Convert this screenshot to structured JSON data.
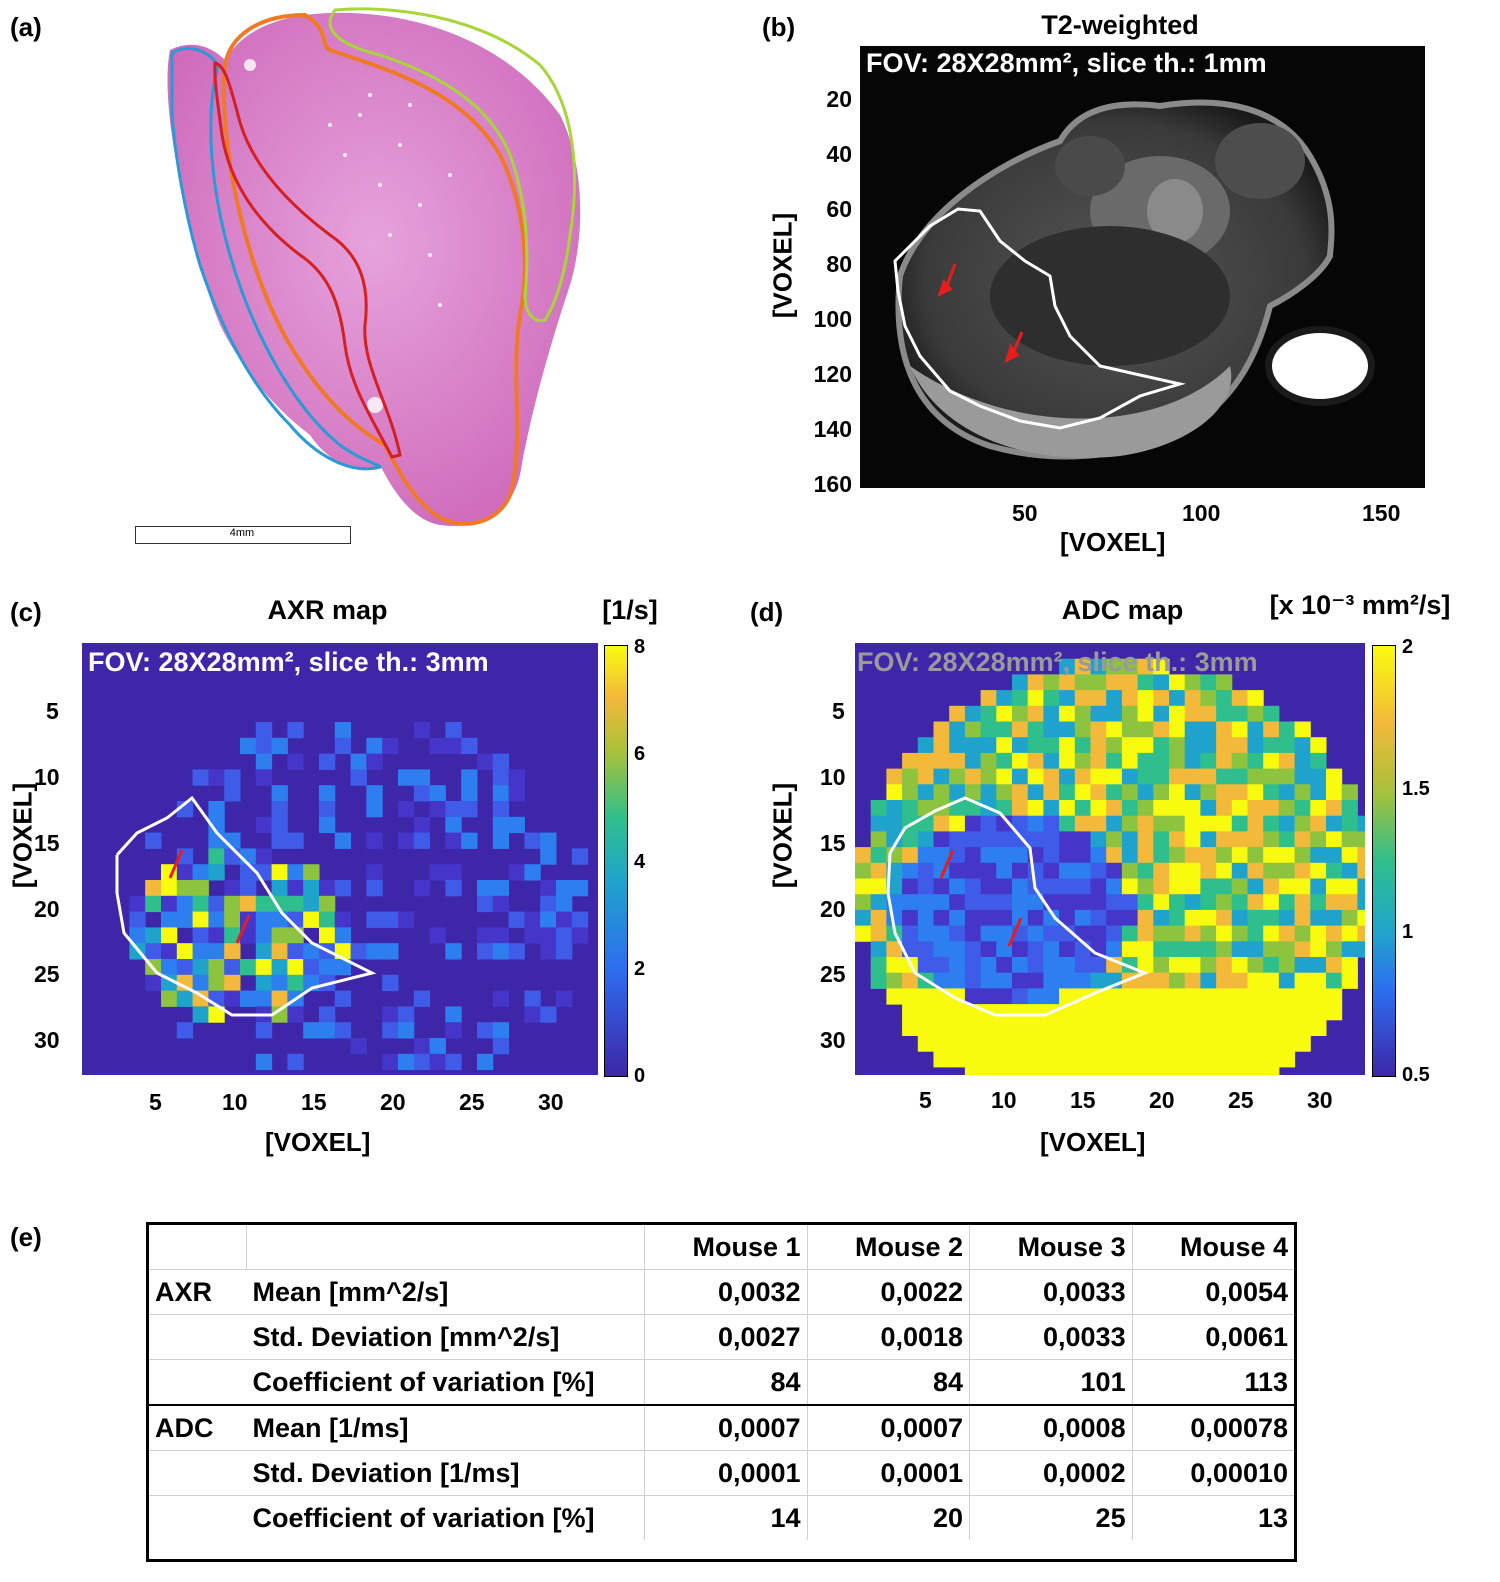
{
  "panels": {
    "a": {
      "label": "(a)",
      "scalebar_text": "4mm"
    },
    "b": {
      "label": "(b)",
      "title": "T2-weighted",
      "fov_text": "FOV: 28X28mm², slice th.: 1mm",
      "xlabel": "[VOXEL]",
      "ylabel": "[VOXEL]",
      "xticks": [
        "50",
        "100",
        "150"
      ],
      "yticks": [
        "20",
        "40",
        "60",
        "80",
        "100",
        "120",
        "140",
        "160"
      ]
    },
    "c": {
      "label": "(c)",
      "title": "AXR map",
      "unit": "[1/s]",
      "fov_text": "FOV: 28X28mm², slice th.: 3mm",
      "xlabel": "[VOXEL]",
      "ylabel": "[VOXEL]",
      "xticks": [
        "5",
        "10",
        "15",
        "20",
        "25",
        "30"
      ],
      "yticks": [
        "5",
        "10",
        "15",
        "20",
        "25",
        "30"
      ],
      "cbticks": [
        "8",
        "6",
        "4",
        "2",
        "0"
      ]
    },
    "d": {
      "label": "(d)",
      "title": "ADC map",
      "unit": "[x 10⁻³ mm²/s]",
      "fov_text": "FOV: 28X28mm², slice th.: 3mm",
      "xlabel": "[VOXEL]",
      "ylabel": "[VOXEL]",
      "xticks": [
        "5",
        "10",
        "15",
        "20",
        "25",
        "30"
      ],
      "yticks": [
        "5",
        "10",
        "15",
        "20",
        "25",
        "30"
      ],
      "cbticks": [
        "2",
        "1.5",
        "1",
        "0.5"
      ]
    },
    "e": {
      "label": "(e)"
    }
  },
  "colors": {
    "parula_low": "#3e26a8",
    "parula_mid": "#1fa3cd",
    "parula_high": "#f9fb0e",
    "he_pink": "#d874c4",
    "roi": "#ffffff",
    "arrow": "#e81c1c"
  },
  "table": {
    "headers": [
      "",
      "",
      "Mouse 1",
      "Mouse 2",
      "Mouse 3",
      "Mouse 4"
    ],
    "groups": [
      {
        "name": "AXR",
        "rows": [
          {
            "metric": "Mean [mm^2/s]",
            "values": [
              "0,0032",
              "0,0022",
              "0,0033",
              "0,0054"
            ]
          },
          {
            "metric": "Std. Deviation [mm^2/s]",
            "values": [
              "0,0027",
              "0,0018",
              "0,0033",
              "0,0061"
            ]
          },
          {
            "metric": "Coefficient of variation [%]",
            "values": [
              "84",
              "84",
              "101",
              "113"
            ]
          }
        ]
      },
      {
        "name": "ADC",
        "rows": [
          {
            "metric": "Mean [1/ms]",
            "values": [
              "0,0007",
              "0,0007",
              "0,0008",
              "0,00078"
            ]
          },
          {
            "metric": "Std. Deviation [1/ms]",
            "values": [
              "0,0001",
              "0,0001",
              "0,0002",
              "0,00010"
            ]
          },
          {
            "metric": "Coefficient of variation [%]",
            "values": [
              "14",
              "20",
              "25",
              "13"
            ]
          }
        ]
      }
    ]
  }
}
